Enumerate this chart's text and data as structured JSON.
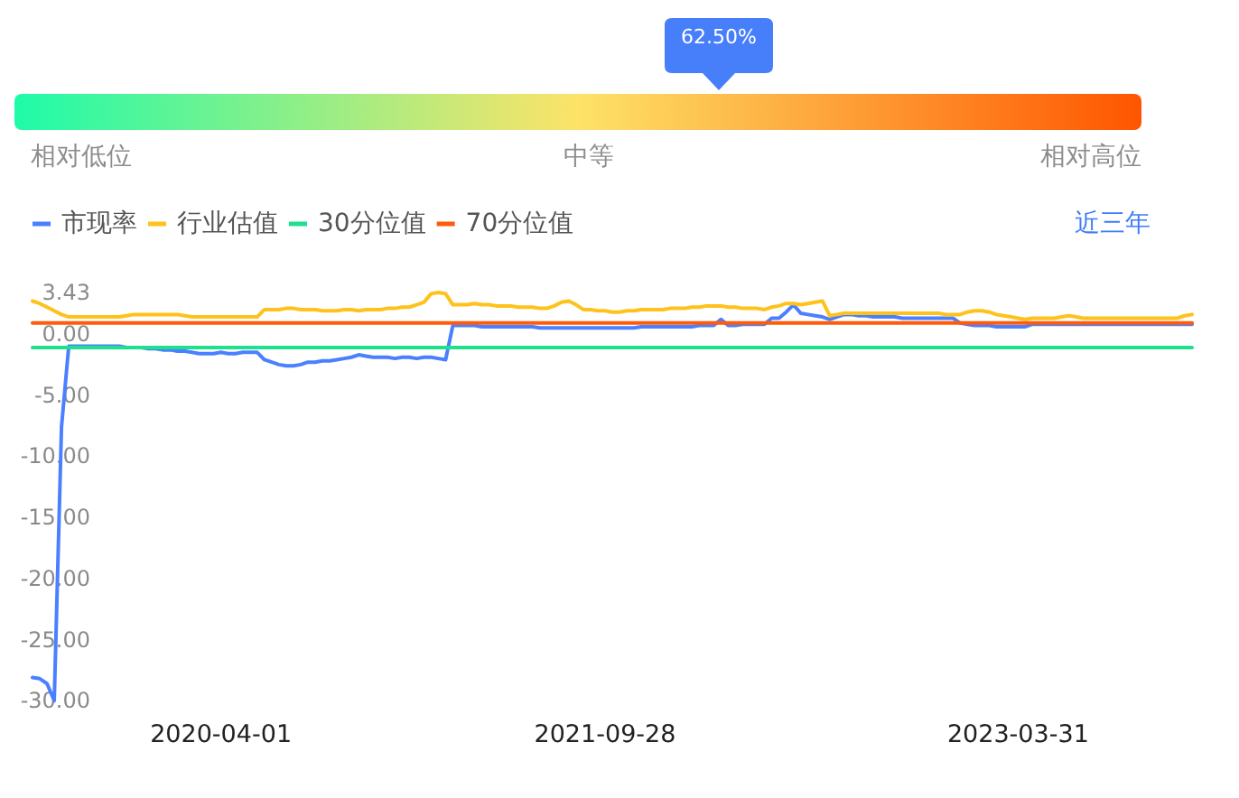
{
  "chart_data": [
    {
      "type": "other",
      "annotations": [
        "相对低位",
        "中等",
        "相对高位"
      ],
      "values": [
        62.5
      ],
      "value_labels": [
        "62.50%"
      ],
      "color": "#477ef9"
    },
    {
      "type": "line",
      "annotations": [
        "近三年"
      ],
      "legend": "top left",
      "categories": [
        null,
        null,
        null,
        null,
        null,
        null,
        null,
        null,
        null,
        null,
        null,
        null,
        null,
        null,
        null,
        null,
        null,
        null,
        null,
        null,
        null,
        null,
        null,
        null,
        null,
        null,
        "2020-04-01",
        null,
        null,
        null,
        null,
        null,
        null,
        null,
        null,
        null,
        null,
        null,
        null,
        null,
        null,
        null,
        null,
        null,
        null,
        null,
        null,
        null,
        null,
        null,
        null,
        null,
        null,
        null,
        null,
        null,
        null,
        null,
        null,
        null,
        null,
        null,
        null,
        null,
        null,
        null,
        null,
        null,
        null,
        null,
        null,
        null,
        null,
        null,
        null,
        null,
        null,
        null,
        null,
        "2021-09-28",
        null,
        null,
        null,
        null,
        null,
        null,
        null,
        null,
        null,
        null,
        null,
        null,
        null,
        null,
        null,
        null,
        null,
        null,
        null,
        null,
        null,
        null,
        null,
        null,
        null,
        null,
        null,
        null,
        null,
        null,
        null,
        null,
        null,
        null,
        null,
        null,
        null,
        null,
        null,
        null,
        null,
        null,
        null,
        null,
        null,
        null,
        null,
        null,
        null,
        null,
        null,
        null,
        null,
        null,
        null,
        null,
        "2023-03-31",
        null,
        null,
        null,
        null,
        null,
        null,
        null,
        null,
        null,
        null,
        null,
        null,
        null,
        null,
        null,
        null,
        null,
        null,
        null,
        null,
        null,
        null,
        null,
        null
      ],
      "series": [
        {
          "name": "市现率",
          "color": "#4a80ff",
          "values": [
            -28.1,
            -28.2,
            -28.6,
            -30,
            -7.6,
            -1.0,
            -1.0,
            -1.0,
            -1.0,
            -1.0,
            -1.0,
            -1.0,
            -1.0,
            -1.1,
            -1.1,
            -1.1,
            -1.2,
            -1.2,
            -1.3,
            -1.3,
            -1.4,
            -1.4,
            -1.5,
            -1.6,
            -1.6,
            -1.6,
            -1.5,
            -1.6,
            -1.6,
            -1.5,
            -1.5,
            -1.5,
            -2.1,
            -2.3,
            -2.5,
            -2.6,
            -2.6,
            -2.5,
            -2.3,
            -2.3,
            -2.2,
            -2.2,
            -2.1,
            -2.0,
            -1.9,
            -1.7,
            -1.8,
            -1.9,
            -1.9,
            -1.9,
            -2.0,
            -1.9,
            -1.9,
            -2.0,
            -1.9,
            -1.9,
            -2.0,
            -2.1,
            0.7,
            0.7,
            0.7,
            0.7,
            0.6,
            0.6,
            0.6,
            0.6,
            0.6,
            0.6,
            0.6,
            0.6,
            0.5,
            0.5,
            0.5,
            0.5,
            0.5,
            0.5,
            0.5,
            0.5,
            0.5,
            0.5,
            0.5,
            0.5,
            0.5,
            0.5,
            0.6,
            0.6,
            0.6,
            0.6,
            0.6,
            0.6,
            0.6,
            0.6,
            0.7,
            0.7,
            0.7,
            1.2,
            0.7,
            0.7,
            0.8,
            0.8,
            0.8,
            0.8,
            1.3,
            1.3,
            1.8,
            2.4,
            1.7,
            1.6,
            1.5,
            1.4,
            1.2,
            1.4,
            1.6,
            1.6,
            1.5,
            1.5,
            1.4,
            1.4,
            1.4,
            1.4,
            1.3,
            1.3,
            1.3,
            1.3,
            1.3,
            1.3,
            1.3,
            1.3,
            0.9,
            0.8,
            0.7,
            0.7,
            0.7,
            0.6,
            0.6,
            0.6,
            0.6,
            0.6,
            0.8,
            0.8,
            0.8,
            0.8,
            0.8,
            0.8,
            0.8,
            0.8,
            0.8,
            0.8,
            0.8,
            0.8,
            0.8,
            0.8,
            0.8,
            0.8,
            0.8,
            0.8,
            0.8,
            0.8,
            0.8,
            0.8,
            0.8
          ]
        },
        {
          "name": "行业估值",
          "color": "#fec21a",
          "values": [
            2.7,
            2.5,
            2.2,
            1.9,
            1.6,
            1.4,
            1.4,
            1.4,
            1.4,
            1.4,
            1.4,
            1.4,
            1.4,
            1.5,
            1.6,
            1.6,
            1.6,
            1.6,
            1.6,
            1.6,
            1.6,
            1.5,
            1.4,
            1.4,
            1.4,
            1.4,
            1.4,
            1.4,
            1.4,
            1.4,
            1.4,
            1.4,
            2.0,
            2.0,
            2.0,
            2.1,
            2.1,
            2.0,
            2.0,
            2.0,
            1.9,
            1.9,
            1.9,
            2.0,
            2.0,
            1.9,
            2.0,
            2.0,
            2.0,
            2.1,
            2.1,
            2.2,
            2.2,
            2.4,
            2.6,
            3.3,
            3.4,
            3.3,
            2.4,
            2.4,
            2.4,
            2.5,
            2.4,
            2.4,
            2.3,
            2.3,
            2.3,
            2.2,
            2.2,
            2.2,
            2.1,
            2.1,
            2.3,
            2.6,
            2.7,
            2.4,
            2.0,
            2.0,
            1.9,
            1.9,
            1.8,
            1.8,
            1.9,
            1.9,
            2.0,
            2.0,
            2.0,
            2.0,
            2.1,
            2.1,
            2.1,
            2.2,
            2.2,
            2.3,
            2.3,
            2.3,
            2.2,
            2.2,
            2.1,
            2.1,
            2.1,
            2.0,
            2.2,
            2.3,
            2.5,
            2.5,
            2.4,
            2.5,
            2.6,
            2.7,
            1.5,
            1.6,
            1.7,
            1.7,
            1.7,
            1.7,
            1.7,
            1.7,
            1.7,
            1.7,
            1.7,
            1.7,
            1.7,
            1.7,
            1.7,
            1.7,
            1.6,
            1.6,
            1.6,
            1.8,
            1.9,
            1.9,
            1.8,
            1.6,
            1.5,
            1.4,
            1.3,
            1.2,
            1.3,
            1.3,
            1.3,
            1.3,
            1.4,
            1.5,
            1.4,
            1.3,
            1.3,
            1.3,
            1.3,
            1.3,
            1.3,
            1.3,
            1.3,
            1.3,
            1.3,
            1.3,
            1.3,
            1.3,
            1.3,
            1.5,
            1.6
          ]
        },
        {
          "name": "30分位值",
          "color": "#1fe08c",
          "values": [
            -1.1,
            -1.1,
            -1.1,
            -1.1,
            -1.1,
            -1.1,
            -1.1,
            -1.1,
            -1.1,
            -1.1,
            -1.1,
            -1.1,
            -1.1,
            -1.1,
            -1.1,
            -1.1,
            -1.1,
            -1.1,
            -1.1,
            -1.1,
            -1.1,
            -1.1,
            -1.1,
            -1.1,
            -1.1,
            -1.1,
            -1.1,
            -1.1,
            -1.1,
            -1.1,
            -1.1,
            -1.1,
            -1.1,
            -1.1,
            -1.1,
            -1.1,
            -1.1,
            -1.1,
            -1.1,
            -1.1,
            -1.1,
            -1.1,
            -1.1,
            -1.1,
            -1.1,
            -1.1,
            -1.1,
            -1.1,
            -1.1,
            -1.1,
            -1.1,
            -1.1,
            -1.1,
            -1.1,
            -1.1,
            -1.1,
            -1.1,
            -1.1,
            -1.1,
            -1.1,
            -1.1,
            -1.1,
            -1.1,
            -1.1,
            -1.1,
            -1.1,
            -1.1,
            -1.1,
            -1.1,
            -1.1,
            -1.1,
            -1.1,
            -1.1,
            -1.1,
            -1.1,
            -1.1,
            -1.1,
            -1.1,
            -1.1,
            -1.1,
            -1.1,
            -1.1,
            -1.1,
            -1.1,
            -1.1,
            -1.1,
            -1.1,
            -1.1,
            -1.1,
            -1.1,
            -1.1,
            -1.1,
            -1.1,
            -1.1,
            -1.1,
            -1.1,
            -1.1,
            -1.1,
            -1.1,
            -1.1,
            -1.1,
            -1.1,
            -1.1,
            -1.1,
            -1.1,
            -1.1,
            -1.1,
            -1.1,
            -1.1,
            -1.1,
            -1.1,
            -1.1,
            -1.1,
            -1.1,
            -1.1,
            -1.1,
            -1.1,
            -1.1,
            -1.1,
            -1.1,
            -1.1,
            -1.1,
            -1.1,
            -1.1,
            -1.1,
            -1.1,
            -1.1,
            -1.1,
            -1.1,
            -1.1,
            -1.1,
            -1.1,
            -1.1,
            -1.1,
            -1.1,
            -1.1,
            -1.1,
            -1.1,
            -1.1,
            -1.1,
            -1.1,
            -1.1,
            -1.1,
            -1.1,
            -1.1,
            -1.1,
            -1.1,
            -1.1,
            -1.1,
            -1.1,
            -1.1,
            -1.1,
            -1.1,
            -1.1,
            -1.1,
            -1.1,
            -1.1,
            -1.1,
            -1.1,
            -1.1,
            -1.1
          ]
        },
        {
          "name": "70分位值",
          "color": "#ff5b0a",
          "values": [
            0.9,
            0.9,
            0.9,
            0.9,
            0.9,
            0.9,
            0.9,
            0.9,
            0.9,
            0.9,
            0.9,
            0.9,
            0.9,
            0.9,
            0.9,
            0.9,
            0.9,
            0.9,
            0.9,
            0.9,
            0.9,
            0.9,
            0.9,
            0.9,
            0.9,
            0.9,
            0.9,
            0.9,
            0.9,
            0.9,
            0.9,
            0.9,
            0.9,
            0.9,
            0.9,
            0.9,
            0.9,
            0.9,
            0.9,
            0.9,
            0.9,
            0.9,
            0.9,
            0.9,
            0.9,
            0.9,
            0.9,
            0.9,
            0.9,
            0.9,
            0.9,
            0.9,
            0.9,
            0.9,
            0.9,
            0.9,
            0.9,
            0.9,
            0.9,
            0.9,
            0.9,
            0.9,
            0.9,
            0.9,
            0.9,
            0.9,
            0.9,
            0.9,
            0.9,
            0.9,
            0.9,
            0.9,
            0.9,
            0.9,
            0.9,
            0.9,
            0.9,
            0.9,
            0.9,
            0.9,
            0.9,
            0.9,
            0.9,
            0.9,
            0.9,
            0.9,
            0.9,
            0.9,
            0.9,
            0.9,
            0.9,
            0.9,
            0.9,
            0.9,
            0.9,
            0.9,
            0.9,
            0.9,
            0.9,
            0.9,
            0.9,
            0.9,
            0.9,
            0.9,
            0.9,
            0.9,
            0.9,
            0.9,
            0.9,
            0.9,
            0.9,
            0.9,
            0.9,
            0.9,
            0.9,
            0.9,
            0.9,
            0.9,
            0.9,
            0.9,
            0.9,
            0.9,
            0.9,
            0.9,
            0.9,
            0.9,
            0.9,
            0.9,
            0.9,
            0.9,
            0.9,
            0.9,
            0.9,
            0.9,
            0.9,
            0.9,
            0.9,
            0.9,
            0.9,
            0.9,
            0.9,
            0.9,
            0.9,
            0.9,
            0.9,
            0.9,
            0.9,
            0.9,
            0.9,
            0.9,
            0.9,
            0.9,
            0.9,
            0.9,
            0.9,
            0.9,
            0.9,
            0.9,
            0.9,
            0.9,
            0.9
          ]
        }
      ],
      "ylim": [
        -30,
        3.43
      ],
      "yticks": [
        3.43,
        {
          "value": 0,
          "label": "0.00"
        },
        {
          "value": -5,
          "label": "-5.00"
        },
        {
          "value": -10,
          "label": "-10.00"
        },
        {
          "value": -15,
          "label": "-15.00"
        },
        {
          "value": -20,
          "label": "-20.00"
        },
        {
          "value": -25,
          "label": "-25.00"
        },
        {
          "value": -30,
          "label": "-30.00"
        }
      ]
    }
  ]
}
